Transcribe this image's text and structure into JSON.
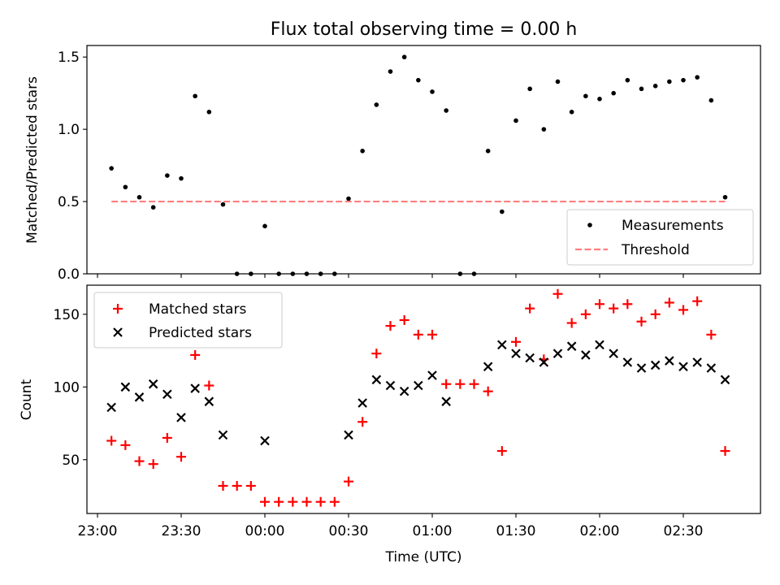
{
  "title": "Flux total observing time = 0.00 h",
  "chart_data": [
    {
      "type": "scatter",
      "ylabel": "Matched/Predicted stars",
      "ylim": [
        0,
        1.58
      ],
      "yticks": [
        0.0,
        0.5,
        1.0,
        1.5
      ],
      "ytick_labels": [
        "0.0",
        "0.5",
        "1.0",
        "1.5"
      ],
      "legend_position": "bottom-right",
      "x": [
        "23:05",
        "23:10",
        "23:15",
        "23:20",
        "23:25",
        "23:30",
        "23:35",
        "23:40",
        "23:45",
        "23:50",
        "23:55",
        "00:00",
        "00:05",
        "00:10",
        "00:15",
        "00:20",
        "00:25",
        "00:30",
        "00:35",
        "00:40",
        "00:45",
        "00:50",
        "00:55",
        "01:00",
        "01:05",
        "01:10",
        "01:15",
        "01:20",
        "01:25",
        "01:30",
        "01:35",
        "01:40",
        "01:45",
        "01:50",
        "01:55",
        "02:00",
        "02:05",
        "02:10",
        "02:15",
        "02:20",
        "02:25",
        "02:30",
        "02:35",
        "02:40",
        "02:45"
      ],
      "series": [
        {
          "name": "Measurements",
          "color": "#000000",
          "marker": "dot",
          "values": [
            0.73,
            0.6,
            0.53,
            0.46,
            0.68,
            0.66,
            1.23,
            1.12,
            0.48,
            0.0,
            0.0,
            0.33,
            0.0,
            0.0,
            0.0,
            0.0,
            0.0,
            0.52,
            0.85,
            1.17,
            1.4,
            1.5,
            1.34,
            1.26,
            1.13,
            0.0,
            0.0,
            0.85,
            0.43,
            1.06,
            1.28,
            1.0,
            1.33,
            1.12,
            1.23,
            1.21,
            1.25,
            1.34,
            1.28,
            1.3,
            1.33,
            1.34,
            1.36,
            1.2,
            0.53
          ]
        },
        {
          "name": "Threshold",
          "color": "#ff7f7f",
          "line": "dashed",
          "x": [
            "23:05",
            "02:45"
          ],
          "values": [
            0.5,
            0.5
          ]
        }
      ]
    },
    {
      "type": "scatter",
      "ylabel": "Count",
      "xlabel": "Time (UTC)",
      "ylim": [
        13,
        170
      ],
      "yticks": [
        50,
        100,
        150
      ],
      "ytick_labels": [
        "50",
        "100",
        "150"
      ],
      "xticks": [
        "23:00",
        "23:30",
        "00:00",
        "00:30",
        "01:00",
        "01:30",
        "02:00",
        "02:30"
      ],
      "legend_position": "top-left",
      "x": [
        "23:05",
        "23:10",
        "23:15",
        "23:20",
        "23:25",
        "23:30",
        "23:35",
        "23:40",
        "23:45",
        "23:50",
        "23:55",
        "00:00",
        "00:05",
        "00:10",
        "00:15",
        "00:20",
        "00:25",
        "00:30",
        "00:35",
        "00:40",
        "00:45",
        "00:50",
        "00:55",
        "01:00",
        "01:05",
        "01:10",
        "01:15",
        "01:20",
        "01:25",
        "01:30",
        "01:35",
        "01:40",
        "01:45",
        "01:50",
        "01:55",
        "02:00",
        "02:05",
        "02:10",
        "02:15",
        "02:20",
        "02:25",
        "02:30",
        "02:35",
        "02:40",
        "02:45"
      ],
      "series": [
        {
          "name": "Matched stars",
          "color": "#ff0000",
          "marker": "plus",
          "values": [
            63,
            60,
            49,
            47,
            65,
            52,
            122,
            101,
            32,
            32,
            32,
            21,
            21,
            21,
            21,
            21,
            21,
            35,
            76,
            123,
            142,
            146,
            136,
            136,
            102,
            102,
            102,
            97,
            56,
            131,
            154,
            119,
            164,
            144,
            150,
            157,
            154,
            157,
            145,
            150,
            158,
            153,
            159,
            136,
            56
          ]
        },
        {
          "name": "Predicted stars",
          "color": "#000000",
          "marker": "x",
          "values": [
            86,
            100,
            93,
            102,
            95,
            79,
            99,
            90,
            67,
            null,
            null,
            63,
            null,
            null,
            null,
            null,
            null,
            67,
            89,
            105,
            101,
            97,
            101,
            108,
            90,
            null,
            null,
            114,
            129,
            123,
            120,
            117,
            123,
            128,
            122,
            129,
            123,
            117,
            113,
            115,
            118,
            114,
            117,
            113,
            105
          ]
        }
      ]
    }
  ]
}
